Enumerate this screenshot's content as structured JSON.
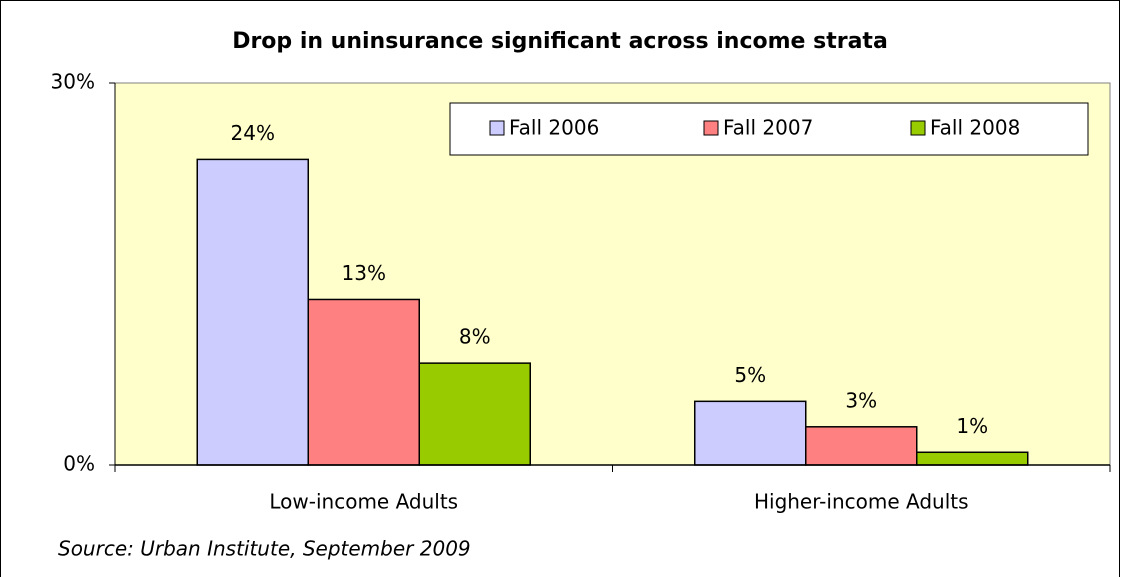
{
  "chart_data": {
    "type": "bar",
    "title": "Drop in uninsurance significant across income strata",
    "categories": [
      "Low-income Adults",
      "Higher-income Adults"
    ],
    "series": [
      {
        "name": "Fall 2006",
        "color": "#ccccff",
        "values": [
          24,
          5
        ],
        "value_labels": [
          "24%",
          "5%"
        ]
      },
      {
        "name": "Fall 2007",
        "color": "#ff8080",
        "values": [
          13,
          3
        ],
        "value_labels": [
          "13%",
          "3%"
        ]
      },
      {
        "name": "Fall 2008",
        "color": "#99cc00",
        "values": [
          8,
          1
        ],
        "value_labels": [
          "8%",
          "1%"
        ]
      }
    ],
    "ylim": [
      0,
      30
    ],
    "yticks": [
      {
        "value": 0,
        "label": "0%"
      },
      {
        "value": 30,
        "label": "30%"
      }
    ],
    "legend": "top-right",
    "plot_background": "#ffffcc",
    "source": "Source: Urban Institute, September 2009"
  }
}
